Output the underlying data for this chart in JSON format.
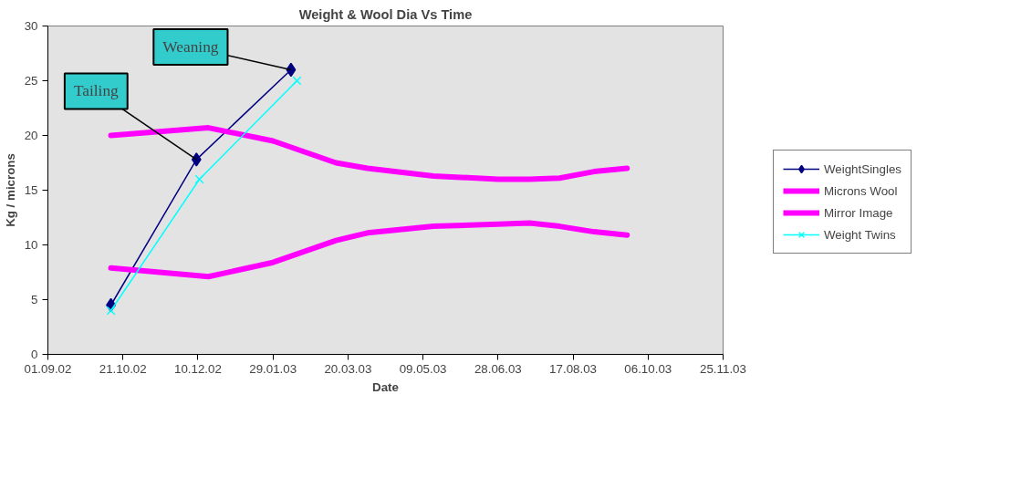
{
  "chart_data": {
    "type": "line",
    "title": "Weight & Wool Dia Vs Time",
    "xlabel": "Date",
    "ylabel": "Kg / microns",
    "xlim": [
      "2002-09-01",
      "2003-11-25"
    ],
    "xticks": [
      {
        "value": "2002-09-01",
        "label": "01.09.02"
      },
      {
        "value": "2002-10-21",
        "label": "21.10.02"
      },
      {
        "value": "2002-12-10",
        "label": "10.12.02"
      },
      {
        "value": "2003-01-29",
        "label": "29.01.03"
      },
      {
        "value": "2003-03-20",
        "label": "20.03.03"
      },
      {
        "value": "2003-05-09",
        "label": "09.05.03"
      },
      {
        "value": "2003-06-28",
        "label": "28.06.03"
      },
      {
        "value": "2003-08-17",
        "label": "17.08.03"
      },
      {
        "value": "2003-10-06",
        "label": "06.10.03"
      },
      {
        "value": "2003-11-25",
        "label": "25.11.03"
      }
    ],
    "ylim": [
      0,
      30
    ],
    "yticks": [
      0,
      5,
      10,
      15,
      20,
      25,
      30
    ],
    "grid": false,
    "legend": "right",
    "series": [
      {
        "name": "WeightSingles",
        "color": "#000080",
        "marker": "diamond",
        "x": [
          "2002-10-13",
          "2002-12-09",
          "2003-02-10"
        ],
        "values": [
          4.5,
          17.8,
          26
        ]
      },
      {
        "name": "Microns Wool",
        "color": "#ff00ff",
        "marker": "none",
        "x": [
          "2002-10-13",
          "2002-12-17",
          "2003-01-29",
          "2003-03-12",
          "2003-04-02",
          "2003-05-16",
          "2003-06-28",
          "2003-07-19",
          "2003-08-08",
          "2003-08-31",
          "2003-09-22"
        ],
        "values": [
          20,
          20.7,
          19.5,
          17.5,
          17,
          16.3,
          16,
          16,
          16.1,
          16.7,
          17
        ]
      },
      {
        "name": "Mirror Image",
        "color": "#ff00ff",
        "marker": "none",
        "x": [
          "2002-10-13",
          "2002-12-17",
          "2003-01-29",
          "2003-03-12",
          "2003-04-02",
          "2003-05-16",
          "2003-06-28",
          "2003-07-19",
          "2003-08-08",
          "2003-08-31",
          "2003-09-22"
        ],
        "values": [
          7.9,
          7.1,
          8.4,
          10.4,
          11.1,
          11.7,
          11.9,
          12,
          11.7,
          11.2,
          10.9
        ]
      },
      {
        "name": "Weight Twins",
        "color": "#00ffff",
        "marker": "cross",
        "x": [
          "2002-10-13",
          "2002-12-11",
          "2003-02-14"
        ],
        "values": [
          4,
          16,
          25
        ]
      }
    ],
    "annotations": [
      {
        "text": "Tailing",
        "x": "2002-12-09",
        "y": 17.8
      },
      {
        "text": "Weaning",
        "x": "2003-02-10",
        "y": 26
      }
    ]
  }
}
